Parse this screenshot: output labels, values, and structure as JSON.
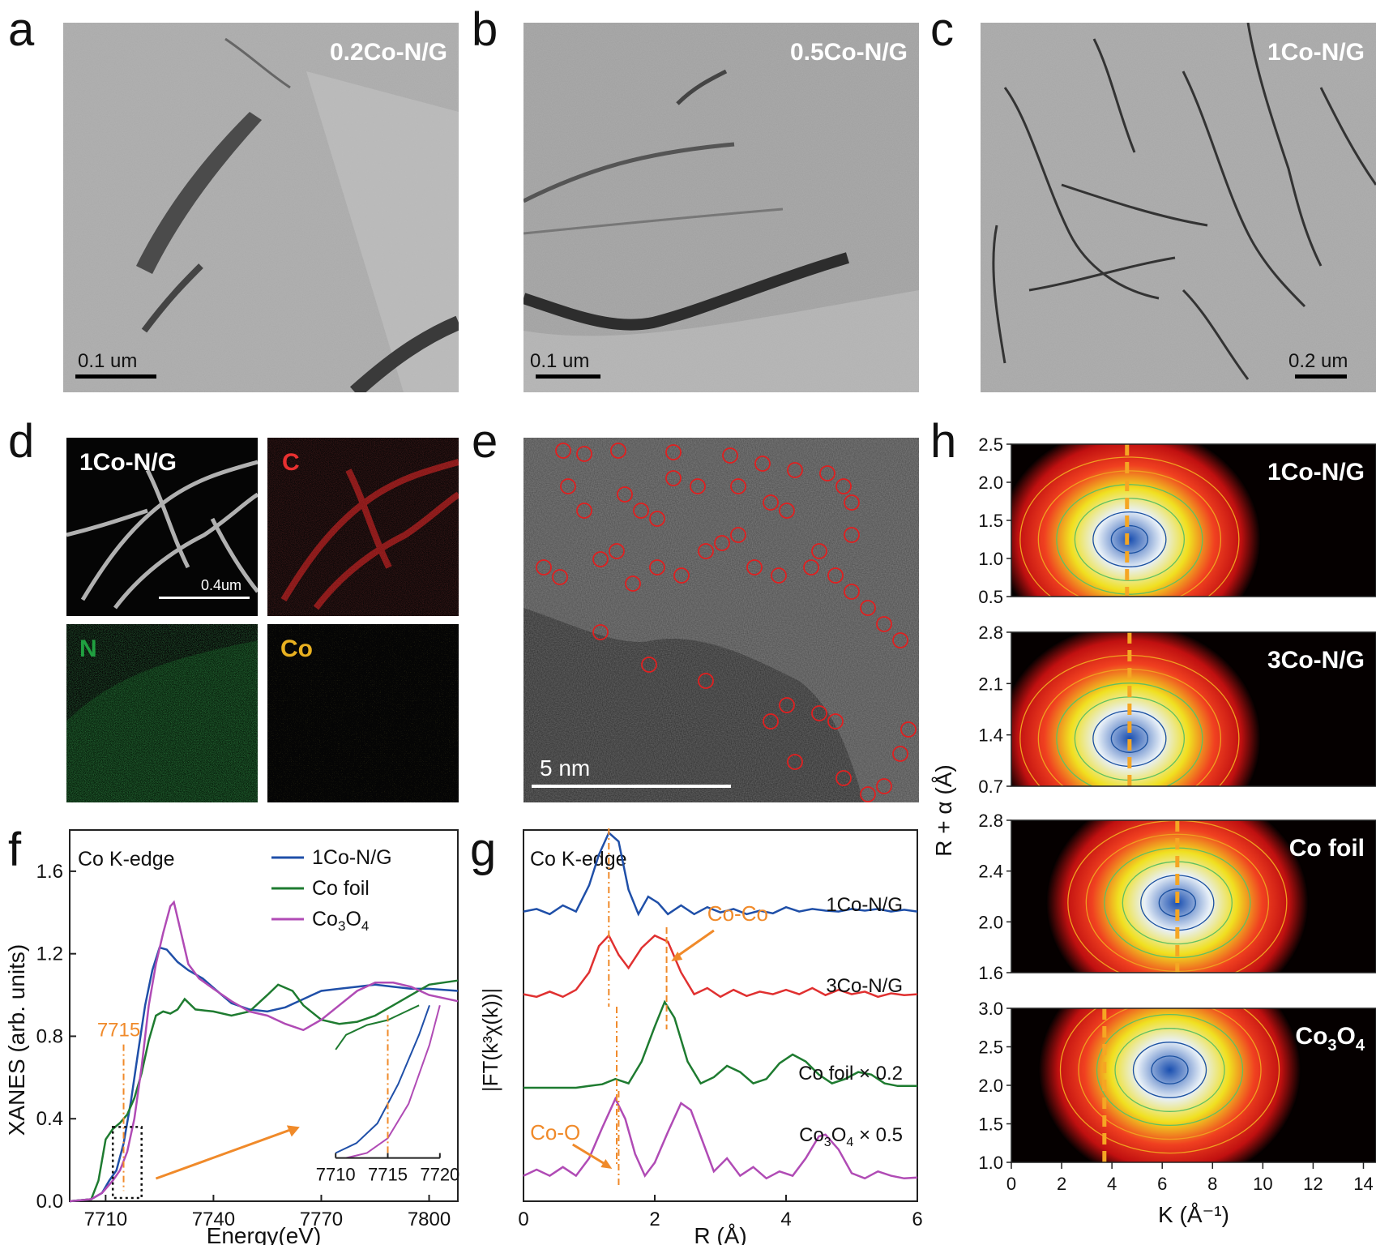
{
  "panels": {
    "a": {
      "letter": "a",
      "label": "0.2Co-N/G",
      "scale": "0.1 um"
    },
    "b": {
      "letter": "b",
      "label": "0.5Co-N/G",
      "scale": "0.1 um"
    },
    "c": {
      "letter": "c",
      "label": "1Co-N/G",
      "scale": "0.2 um"
    },
    "d": {
      "letter": "d",
      "labels": [
        "1Co-N/G",
        "C",
        "N",
        "Co"
      ],
      "scale": "0.4um"
    },
    "e": {
      "letter": "e",
      "scale": "5 nm"
    },
    "f": {
      "letter": "f"
    },
    "g": {
      "letter": "g"
    },
    "h": {
      "letter": "h"
    }
  },
  "colors": {
    "blue": "#1f4fa8",
    "green": "#1e7b30",
    "magenta": "#b04bb5",
    "red": "#e03030",
    "orange": "#f08a2a"
  },
  "chart_data": [
    {
      "type": "line",
      "panel": "f",
      "title": "Co K-edge",
      "xlabel": "Energy(eV)",
      "ylabel": "XANES (arb. units)",
      "xlim": [
        7700,
        7808
      ],
      "ylim": [
        0,
        1.8
      ],
      "xticks": [
        "7710",
        "7740",
        "7770",
        "7800"
      ],
      "yticks": [
        "0.0",
        "0.4",
        "0.8",
        "1.2",
        "1.6"
      ],
      "annotation": "7715",
      "series": [
        {
          "name": "1Co-N/G",
          "color": "#1f4fa8",
          "x": [
            7700,
            7706,
            7709,
            7711,
            7713,
            7715,
            7717,
            7719,
            7721,
            7723,
            7725,
            7727,
            7730,
            7733,
            7737,
            7741,
            7745,
            7750,
            7755,
            7760,
            7765,
            7770,
            7775,
            7780,
            7785,
            7790,
            7795,
            7800,
            7808
          ],
          "y": [
            0,
            0.01,
            0.04,
            0.1,
            0.15,
            0.28,
            0.48,
            0.72,
            0.95,
            1.12,
            1.23,
            1.22,
            1.16,
            1.12,
            1.08,
            1.02,
            0.96,
            0.93,
            0.92,
            0.94,
            0.98,
            1.02,
            1.03,
            1.04,
            1.05,
            1.04,
            1.03,
            1.03,
            1.02
          ]
        },
        {
          "name": "Co foil",
          "color": "#1e7b30",
          "x": [
            7700,
            7706,
            7708,
            7710,
            7712,
            7714,
            7716,
            7718,
            7720,
            7722,
            7724,
            7726,
            7728,
            7730,
            7732,
            7735,
            7740,
            7745,
            7750,
            7755,
            7758,
            7762,
            7765,
            7770,
            7775,
            7780,
            7785,
            7790,
            7795,
            7800,
            7808
          ],
          "y": [
            0,
            0.01,
            0.1,
            0.3,
            0.35,
            0.38,
            0.42,
            0.5,
            0.62,
            0.78,
            0.9,
            0.92,
            0.91,
            0.93,
            0.98,
            0.93,
            0.92,
            0.9,
            0.92,
            1.0,
            1.05,
            1.02,
            0.95,
            0.88,
            0.86,
            0.87,
            0.9,
            0.95,
            1.0,
            1.05,
            1.07
          ]
        },
        {
          "name": "Co3O4",
          "color": "#b04bb5",
          "x": [
            7700,
            7706,
            7709,
            7712,
            7714,
            7716,
            7718,
            7720,
            7722,
            7724,
            7726,
            7728,
            7729,
            7731,
            7733,
            7736,
            7740,
            7745,
            7750,
            7755,
            7760,
            7765,
            7770,
            7775,
            7780,
            7785,
            7790,
            7795,
            7800,
            7808
          ],
          "y": [
            0,
            0.01,
            0.04,
            0.1,
            0.15,
            0.24,
            0.4,
            0.65,
            0.95,
            1.15,
            1.3,
            1.43,
            1.45,
            1.3,
            1.15,
            1.08,
            1.03,
            0.97,
            0.92,
            0.9,
            0.86,
            0.83,
            0.88,
            0.95,
            1.02,
            1.06,
            1.06,
            1.04,
            1.0,
            0.97
          ]
        }
      ],
      "inset": {
        "xlim": [
          7710,
          7720
        ],
        "xticks": [
          "7710",
          "7715",
          "7720"
        ]
      }
    },
    {
      "type": "line",
      "panel": "g",
      "title": "Co K-edge",
      "xlabel": "R (Å)",
      "ylabel": "|FT(k³χ(k))|",
      "xlim": [
        0,
        6
      ],
      "xticks": [
        "0",
        "2",
        "4",
        "6"
      ],
      "annotations": [
        "Co-Co",
        "Co-O"
      ],
      "series": [
        {
          "name": "1Co-N/G",
          "color": "#1f4fa8",
          "offset": 3.0,
          "x": [
            0,
            0.2,
            0.4,
            0.6,
            0.8,
            1.0,
            1.15,
            1.3,
            1.45,
            1.6,
            1.75,
            1.9,
            2.05,
            2.2,
            2.4,
            2.6,
            2.8,
            3.0,
            3.2,
            3.4,
            3.6,
            3.8,
            4.0,
            4.2,
            4.4,
            4.6,
            4.8,
            5.0,
            5.2,
            5.4,
            5.6,
            5.8,
            6.0
          ],
          "y": [
            0.05,
            0.08,
            0.02,
            0.12,
            0.05,
            0.35,
            0.7,
            0.95,
            0.85,
            0.3,
            0.02,
            0.22,
            0.15,
            0.02,
            0.12,
            0.02,
            0.1,
            0.04,
            0.08,
            0.02,
            0.06,
            0.03,
            0.1,
            0.05,
            0.08,
            0.06,
            0.05,
            0.08,
            0.06,
            0.08,
            0.05,
            0.07,
            0.05
          ]
        },
        {
          "name": "3Co-N/G",
          "color": "#e03030",
          "offset": 2.0,
          "x": [
            0,
            0.2,
            0.4,
            0.6,
            0.8,
            1.0,
            1.15,
            1.3,
            1.45,
            1.6,
            1.8,
            2.0,
            2.2,
            2.4,
            2.6,
            2.8,
            3.0,
            3.2,
            3.4,
            3.6,
            3.8,
            4.0,
            4.2,
            4.4,
            4.6,
            4.8,
            5.0,
            5.2,
            5.4,
            5.6,
            5.8,
            6.0
          ],
          "y": [
            0.05,
            0.02,
            0.08,
            0.02,
            0.1,
            0.3,
            0.6,
            0.72,
            0.5,
            0.35,
            0.58,
            0.72,
            0.65,
            0.3,
            0.05,
            0.12,
            0.02,
            0.1,
            0.03,
            0.08,
            0.05,
            0.1,
            0.05,
            0.12,
            0.04,
            0.1,
            0.05,
            0.08,
            0.02,
            0.06,
            0.04,
            0.05
          ]
        },
        {
          "name": "Co foil × 0.2",
          "color": "#1e7b30",
          "offset": 1.0,
          "x": [
            0,
            0.2,
            0.4,
            0.6,
            0.8,
            1.0,
            1.2,
            1.4,
            1.6,
            1.8,
            2.0,
            2.15,
            2.3,
            2.5,
            2.7,
            2.9,
            3.1,
            3.3,
            3.5,
            3.7,
            3.9,
            4.1,
            4.3,
            4.5,
            4.7,
            4.9,
            5.1,
            5.3,
            5.5,
            5.7,
            6.0
          ],
          "y": [
            0,
            0,
            0,
            0,
            0,
            0.02,
            0.04,
            0.1,
            0.05,
            0.3,
            0.7,
            0.98,
            0.8,
            0.3,
            0.05,
            0.12,
            0.25,
            0.18,
            0.05,
            0.1,
            0.28,
            0.38,
            0.3,
            0.15,
            0.05,
            0.1,
            0.18,
            0.15,
            0.05,
            0.02,
            0.02
          ]
        },
        {
          "name": "Co3O4 × 0.5",
          "color": "#b04bb5",
          "offset": 0.0,
          "x": [
            0,
            0.2,
            0.4,
            0.6,
            0.8,
            1.0,
            1.2,
            1.4,
            1.55,
            1.7,
            1.85,
            2.0,
            2.2,
            2.4,
            2.55,
            2.7,
            2.9,
            3.1,
            3.3,
            3.5,
            3.7,
            3.9,
            4.1,
            4.3,
            4.5,
            4.6,
            4.8,
            5.0,
            5.2,
            5.4,
            5.6,
            5.8,
            6.0
          ],
          "y": [
            0.05,
            0.12,
            0.05,
            0.15,
            0.05,
            0.25,
            0.6,
            0.93,
            0.7,
            0.3,
            0.05,
            0.2,
            0.55,
            0.88,
            0.8,
            0.5,
            0.1,
            0.25,
            0.05,
            0.15,
            0.02,
            0.1,
            0.05,
            0.25,
            0.5,
            0.52,
            0.35,
            0.08,
            0.02,
            0.1,
            0.05,
            0.02,
            0.03
          ]
        }
      ]
    },
    {
      "type": "heatmap",
      "panel": "h",
      "xlabel": "K (Å⁻¹)",
      "ylabel": "R + α (Å)",
      "xlim": [
        0,
        14.5
      ],
      "xticks": [
        "0",
        "2",
        "4",
        "6",
        "8",
        "10",
        "12",
        "14"
      ],
      "maps": [
        {
          "name": "1Co-N/G",
          "ylim": [
            0.5,
            2.5
          ],
          "yticks": [
            "0.5",
            "1.0",
            "1.5",
            "2.0",
            "2.5"
          ],
          "center_k": 4.7,
          "center_r": 1.25,
          "dashed_k": 4.6
        },
        {
          "name": "3Co-N/G",
          "ylim": [
            0.7,
            2.8
          ],
          "yticks": [
            "0.7",
            "1.4",
            "2.1",
            "2.8"
          ],
          "center_k": 4.7,
          "center_r": 1.35,
          "dashed_k": 4.7
        },
        {
          "name": "Co foil",
          "ylim": [
            1.6,
            2.8
          ],
          "yticks": [
            "1.6",
            "2.0",
            "2.4",
            "2.8"
          ],
          "center_k": 6.6,
          "center_r": 2.15,
          "dashed_k": 6.6
        },
        {
          "name": "Co3O4",
          "ylim": [
            1.0,
            3.0
          ],
          "yticks": [
            "1.0",
            "1.5",
            "2.0",
            "2.5",
            "3.0"
          ],
          "center_k": 6.3,
          "center_r": 2.2,
          "dashed_k": 3.7
        }
      ]
    }
  ]
}
